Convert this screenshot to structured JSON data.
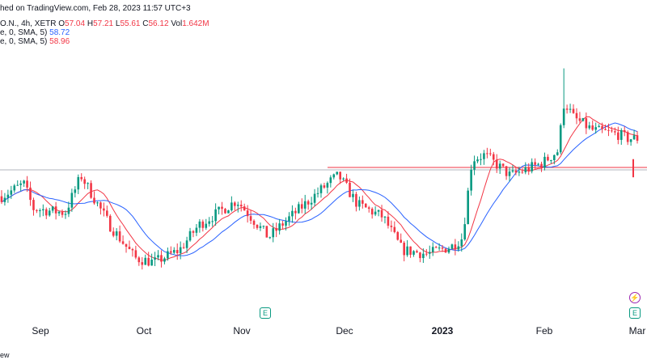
{
  "header": {
    "published": "hed on TradingView.com, Feb 28, 2023 11:57 UTC+3",
    "symbol": "O.N., 4h, XETR",
    "ohlc": {
      "o_label": "O",
      "o": "57.04",
      "h_label": "H",
      "h": "57.21",
      "l_label": "L",
      "l": "55.61",
      "c_label": "C",
      "c": "56.12",
      "vol_label": "Vol",
      "vol": "1.642M"
    },
    "ma1": {
      "label": "e, 0, SMA, 5)",
      "value": "58.72",
      "color": "#2962ff"
    },
    "ma2": {
      "label": "e, 0, SMA, 5)",
      "value": "58.96",
      "color": "#f23645"
    }
  },
  "x_axis": {
    "ticks": [
      {
        "label": "Sep",
        "strong": false
      },
      {
        "label": "Oct",
        "strong": false
      },
      {
        "label": "Nov",
        "strong": false
      },
      {
        "label": "Dec",
        "strong": false
      },
      {
        "label": "2023",
        "strong": true
      },
      {
        "label": "Feb",
        "strong": false
      },
      {
        "label": "Mar",
        "strong": false
      }
    ]
  },
  "footer": {
    "text": "ew"
  },
  "markers": {
    "earnings": "E",
    "flash": "⚡"
  },
  "colors": {
    "up": "#089981",
    "down": "#f23645",
    "ma_fast": "#f23645",
    "ma_slow": "#2962ff",
    "level": "#f23645"
  },
  "chart_data": {
    "type": "candlestick",
    "timeframe": "4h",
    "title": "",
    "xlabel": "",
    "ylabel": "",
    "x_tick_labels": [
      "Sep",
      "Oct",
      "Nov",
      "Dec",
      "2023",
      "Feb",
      "Mar"
    ],
    "key_points": [
      {
        "t": 0.0,
        "p": 55.0
      },
      {
        "t": 0.035,
        "p": 56.5
      },
      {
        "t": 0.05,
        "p": 53.5
      },
      {
        "t": 0.1,
        "p": 53.0
      },
      {
        "t": 0.125,
        "p": 57.5
      },
      {
        "t": 0.17,
        "p": 51.5
      },
      {
        "t": 0.21,
        "p": 47.5
      },
      {
        "t": 0.24,
        "p": 47.0
      },
      {
        "t": 0.28,
        "p": 48.5
      },
      {
        "t": 0.31,
        "p": 51.5
      },
      {
        "t": 0.37,
        "p": 54.5
      },
      {
        "t": 0.42,
        "p": 50.0
      },
      {
        "t": 0.44,
        "p": 51.5
      },
      {
        "t": 0.52,
        "p": 57.0
      },
      {
        "t": 0.53,
        "p": 57.5
      },
      {
        "t": 0.56,
        "p": 54.0
      },
      {
        "t": 0.6,
        "p": 52.5
      },
      {
        "t": 0.63,
        "p": 48.5
      },
      {
        "t": 0.67,
        "p": 48.0
      },
      {
        "t": 0.71,
        "p": 49.0
      },
      {
        "t": 0.725,
        "p": 50.0
      },
      {
        "t": 0.74,
        "p": 59.5
      },
      {
        "t": 0.76,
        "p": 60.0
      },
      {
        "t": 0.8,
        "p": 57.5
      },
      {
        "t": 0.85,
        "p": 59.0
      },
      {
        "t": 0.875,
        "p": 60.5
      },
      {
        "t": 0.885,
        "p": 66.5
      },
      {
        "t": 0.9,
        "p": 64.5
      },
      {
        "t": 0.93,
        "p": 63.0
      },
      {
        "t": 0.97,
        "p": 62.5
      },
      {
        "t": 0.985,
        "p": 62.0
      }
    ],
    "spike_high": 70.5,
    "horizontal_levels": [
      58.2
    ],
    "series": [
      {
        "type": "candles"
      },
      {
        "type": "sma",
        "color": "#f23645"
      },
      {
        "type": "sma",
        "color": "#2962ff"
      }
    ]
  }
}
